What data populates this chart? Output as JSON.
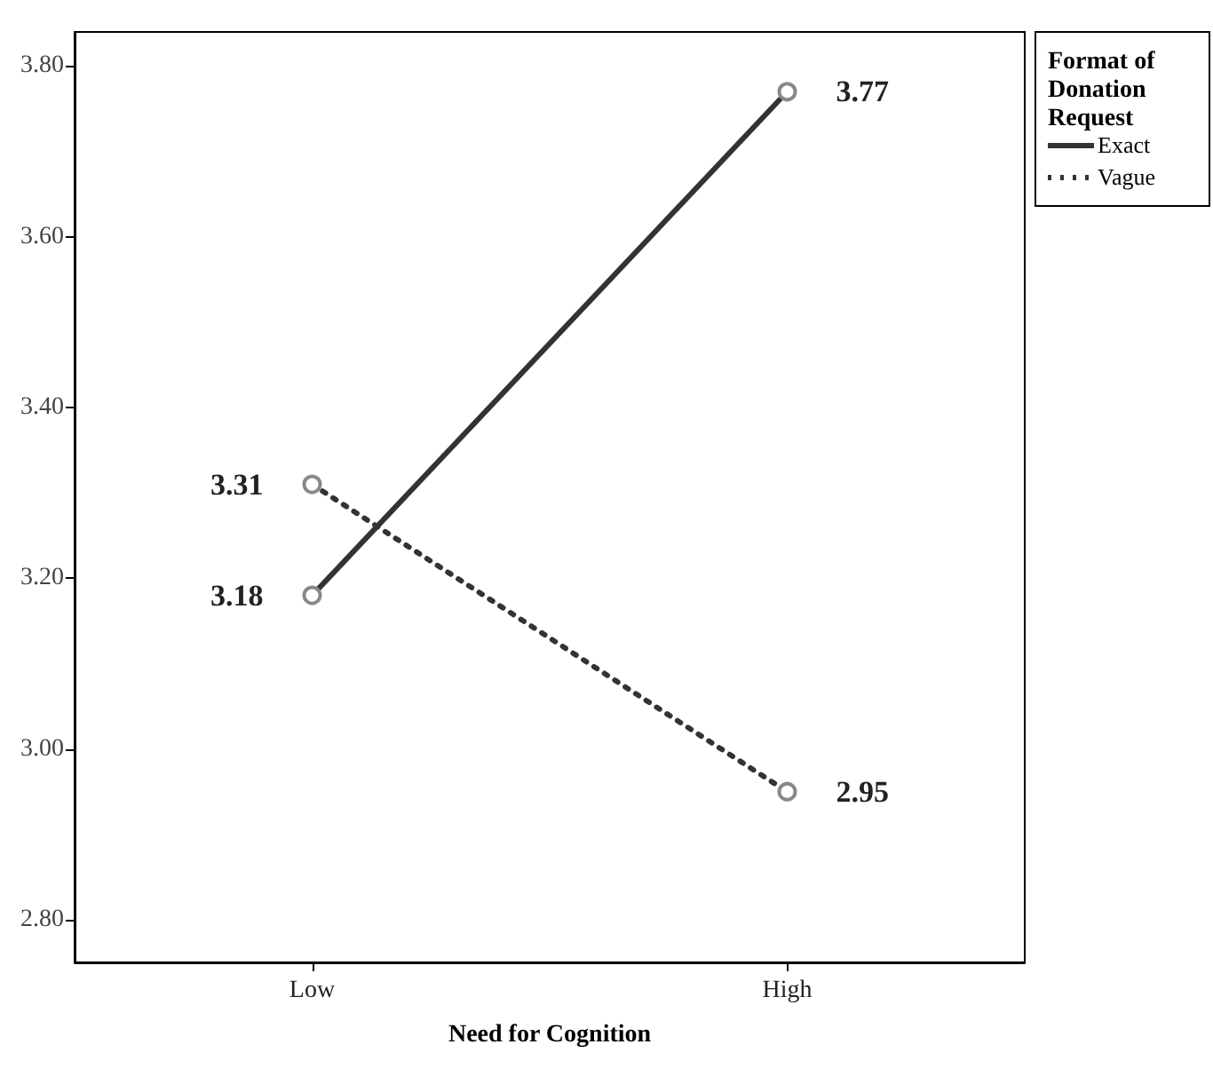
{
  "chart_data": {
    "type": "line",
    "xlabel": "Need for Cognition",
    "legend_title": "Format of Donation Request",
    "categories": [
      "Low",
      "High"
    ],
    "series": [
      {
        "name": "Exact",
        "color": "#333333",
        "values": [
          3.18,
          3.77
        ],
        "line_style": "solid"
      },
      {
        "name": "Vague",
        "color": "#333333",
        "values": [
          3.31,
          2.95
        ],
        "line_style": "dotted"
      }
    ],
    "ylim": [
      2.75,
      3.84
    ],
    "yticks": [
      {
        "value": 2.8,
        "label": "2.80"
      },
      {
        "value": 3.0,
        "label": "3.00"
      },
      {
        "value": 3.2,
        "label": "3.20"
      },
      {
        "value": 3.4,
        "label": "3.40"
      },
      {
        "value": 3.6,
        "label": "3.60"
      },
      {
        "value": 3.8,
        "label": "3.80"
      }
    ],
    "data_labels": true,
    "marker": "circle",
    "grid": false,
    "legend": "top right"
  }
}
